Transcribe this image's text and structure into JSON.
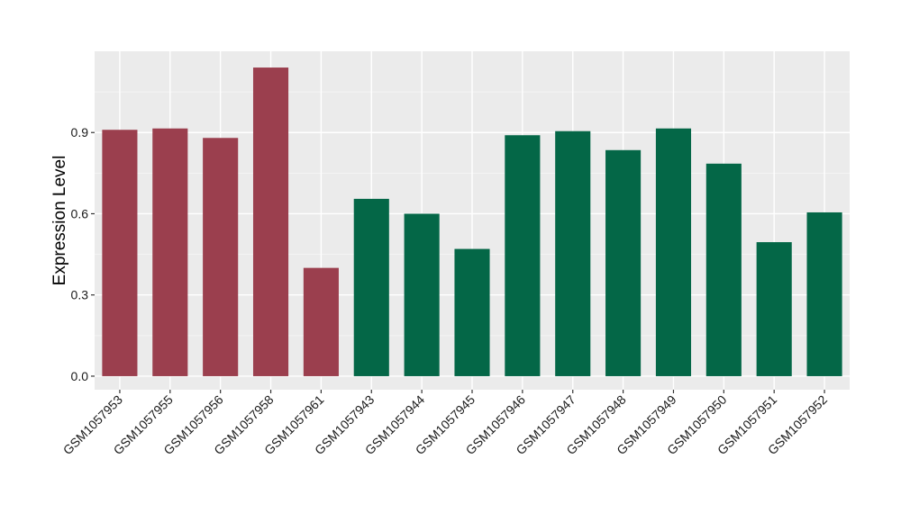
{
  "chart_data": {
    "type": "bar",
    "title": "",
    "xlabel": "",
    "ylabel": "Expression Level",
    "ylim": [
      -0.05,
      1.2
    ],
    "yticks": [
      "0.0",
      "0.3",
      "0.6",
      "0.9"
    ],
    "ytick_values": [
      0.0,
      0.3,
      0.6,
      0.9
    ],
    "grid": true,
    "background": "#ebebeb",
    "categories": [
      "GSM1057953",
      "GSM1057955",
      "GSM1057956",
      "GSM1057958",
      "GSM1057961",
      "GSM1057943",
      "GSM1057944",
      "GSM1057945",
      "GSM1057946",
      "GSM1057947",
      "GSM1057948",
      "GSM1057949",
      "GSM1057950",
      "GSM1057951",
      "GSM1057952"
    ],
    "values": [
      0.91,
      0.915,
      0.88,
      1.14,
      0.4,
      0.655,
      0.6,
      0.47,
      0.89,
      0.905,
      0.835,
      0.915,
      0.785,
      0.495,
      0.605
    ],
    "groups": [
      "a",
      "a",
      "a",
      "a",
      "a",
      "b",
      "b",
      "b",
      "b",
      "b",
      "b",
      "b",
      "b",
      "b",
      "b"
    ],
    "group_colors": {
      "a": "#9b3f4e",
      "b": "#046747"
    }
  }
}
